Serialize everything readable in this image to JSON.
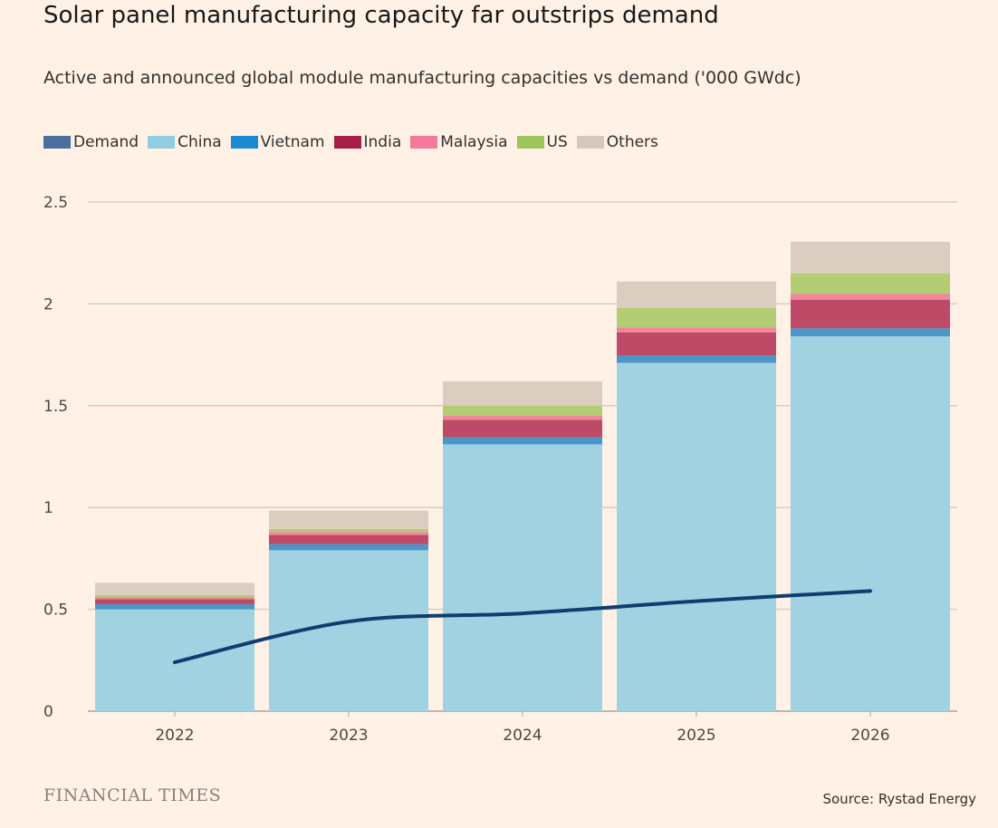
{
  "title": "Solar panel manufacturing capacity far outstrips demand",
  "subtitle": "Active and announced global module manufacturing capacities vs demand ('000 GWdc)",
  "footer": {
    "brand": "FINANCIAL TIMES",
    "source": "Source: Rystad Energy"
  },
  "chart_data": {
    "type": "bar",
    "stacked": true,
    "categories": [
      "2022",
      "2023",
      "2024",
      "2025",
      "2026"
    ],
    "ylim": [
      0,
      2.5
    ],
    "yticks": [
      {
        "v": 0,
        "label": "0"
      },
      {
        "v": 0.5,
        "label": "0.5"
      },
      {
        "v": 1,
        "label": "1"
      },
      {
        "v": 1.5,
        "label": "1.5"
      },
      {
        "v": 2,
        "label": "2"
      },
      {
        "v": 2.5,
        "label": "2.5"
      }
    ],
    "grid": true,
    "legend_position": "top-left",
    "legend": [
      {
        "name": "Demand",
        "color": "#4a6f9c"
      },
      {
        "name": "China",
        "color": "#8fcde3"
      },
      {
        "name": "Vietnam",
        "color": "#1b8ad1"
      },
      {
        "name": "India",
        "color": "#a51e4a"
      },
      {
        "name": "Malaysia",
        "color": "#f2799a"
      },
      {
        "name": "US",
        "color": "#9cc65c"
      },
      {
        "name": "Others",
        "color": "#d6c8bb"
      }
    ],
    "series": [
      {
        "name": "China",
        "color": "#a0d2e2",
        "values": [
          0.5,
          0.79,
          1.31,
          1.71,
          1.84
        ]
      },
      {
        "name": "Vietnam",
        "color": "#4a96c8",
        "values": [
          0.025,
          0.03,
          0.035,
          0.035,
          0.04
        ]
      },
      {
        "name": "India",
        "color": "#bd4a66",
        "values": [
          0.025,
          0.045,
          0.085,
          0.115,
          0.14
        ]
      },
      {
        "name": "Malaysia",
        "color": "#f0879a",
        "values": [
          0.01,
          0.015,
          0.02,
          0.025,
          0.03
        ]
      },
      {
        "name": "US",
        "color": "#b2cd74",
        "values": [
          0.01,
          0.015,
          0.05,
          0.095,
          0.1
        ]
      },
      {
        "name": "Others",
        "color": "#dbcdbf",
        "values": [
          0.06,
          0.09,
          0.12,
          0.13,
          0.155
        ]
      }
    ],
    "line": {
      "name": "Demand",
      "color": "#0f3e6e",
      "values": [
        0.24,
        0.44,
        0.48,
        0.54,
        0.59
      ]
    }
  }
}
